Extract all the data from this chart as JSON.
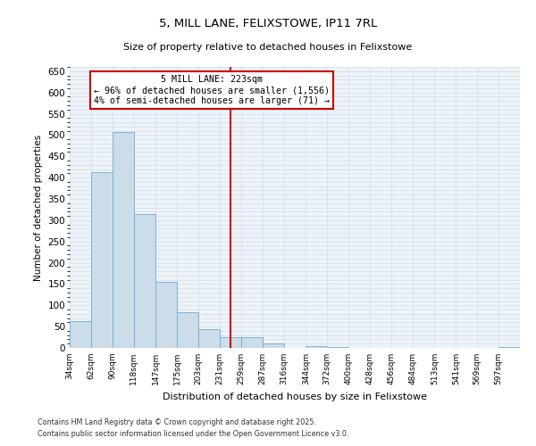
{
  "title": "5, MILL LANE, FELIXSTOWE, IP11 7RL",
  "subtitle": "Size of property relative to detached houses in Felixstowe",
  "xlabel": "Distribution of detached houses by size in Felixstowe",
  "ylabel": "Number of detached properties",
  "bar_color": "#ccdce8",
  "bar_edge_color": "#6aafd6",
  "grid_color": "#c8d8e8",
  "background_color": "#eef3f8",
  "vline_x": 231,
  "vline_color": "#cc0000",
  "annotation_line1": "5 MILL LANE: 223sqm",
  "annotation_line2": "← 96% of detached houses are smaller (1,556)",
  "annotation_line3": "4% of semi-detached houses are larger (71) →",
  "annotation_box_color": "#cc0000",
  "ylim": [
    0,
    660
  ],
  "yticks": [
    0,
    50,
    100,
    150,
    200,
    250,
    300,
    350,
    400,
    450,
    500,
    550,
    600,
    650
  ],
  "bin_left_edges": [
    20,
    48,
    76,
    104,
    133,
    161,
    189,
    217,
    245,
    273,
    301,
    330,
    358,
    386,
    414,
    442,
    470,
    499,
    527,
    555,
    583
  ],
  "bin_width": 28,
  "bin_labels": [
    "34sqm",
    "62sqm",
    "90sqm",
    "118sqm",
    "147sqm",
    "175sqm",
    "203sqm",
    "231sqm",
    "259sqm",
    "287sqm",
    "316sqm",
    "344sqm",
    "372sqm",
    "400sqm",
    "428sqm",
    "456sqm",
    "484sqm",
    "513sqm",
    "541sqm",
    "569sqm",
    "597sqm"
  ],
  "counts": [
    62,
    412,
    507,
    314,
    155,
    84,
    45,
    25,
    25,
    10,
    0,
    5,
    2,
    0,
    0,
    0,
    0,
    0,
    0,
    0,
    2
  ],
  "xlim_left": 20,
  "xlim_right": 611,
  "footer1": "Contains HM Land Registry data © Crown copyright and database right 2025.",
  "footer2": "Contains public sector information licensed under the Open Government Licence v3.0."
}
